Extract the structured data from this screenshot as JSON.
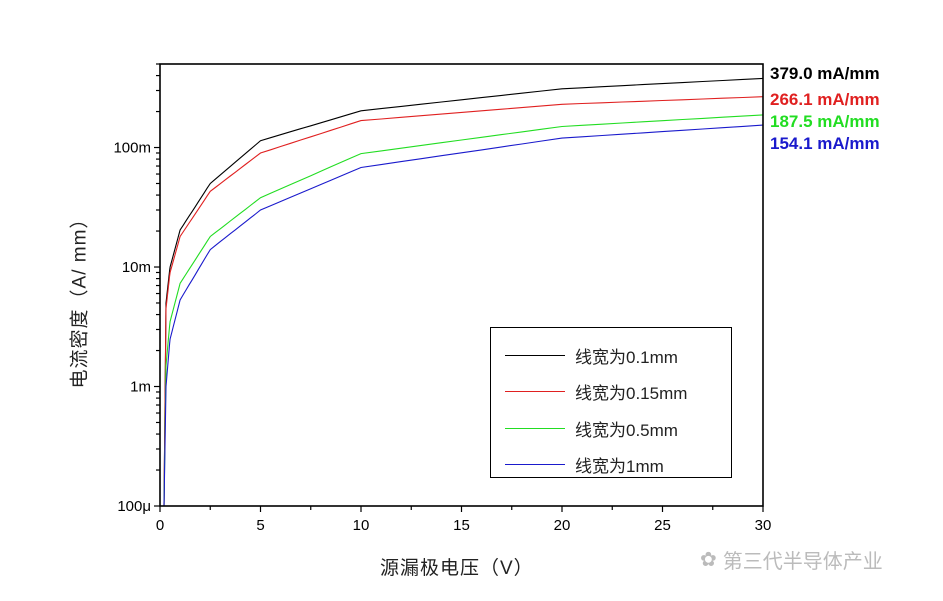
{
  "chart_data": {
    "type": "line",
    "xlabel": "源漏极电压（V）",
    "ylabel": "电流密度（A/ mm）",
    "xlim": [
      0,
      30
    ],
    "ylim": [
      0.0001,
      0.5
    ],
    "yscale": "log",
    "xticks": [
      "0",
      "5",
      "10",
      "15",
      "20",
      "25",
      "30"
    ],
    "yticks": [
      {
        "v": 0.0001,
        "label": "100μ"
      },
      {
        "v": 0.001,
        "label": "1m"
      },
      {
        "v": 0.01,
        "label": "10m"
      },
      {
        "v": 0.1,
        "label": "100m"
      }
    ],
    "grid": false,
    "legend_position": "bottom-right",
    "series": [
      {
        "name": "线宽为0.1mm",
        "color": "#000000",
        "x": [
          0.2,
          0.3,
          0.5,
          1,
          2.5,
          5,
          10,
          20,
          30
        ],
        "y": [
          0.0001,
          0.005,
          0.01,
          0.0204,
          0.05,
          0.114,
          0.203,
          0.31,
          0.379
        ]
      },
      {
        "name": "线宽为0.15mm",
        "color": "#e02020",
        "x": [
          0.2,
          0.3,
          0.5,
          1,
          2.5,
          5,
          10,
          20,
          30
        ],
        "y": [
          0.0001,
          0.0045,
          0.009,
          0.018,
          0.043,
          0.09,
          0.168,
          0.23,
          0.2661
        ]
      },
      {
        "name": "线宽为0.5mm",
        "color": "#22dd22",
        "x": [
          0.2,
          0.3,
          0.5,
          1,
          2.5,
          5,
          10,
          20,
          30
        ],
        "y": [
          0.0001,
          0.0015,
          0.0035,
          0.0073,
          0.018,
          0.038,
          0.089,
          0.15,
          0.1875
        ]
      },
      {
        "name": "线宽为1mm",
        "color": "#1a1acc",
        "x": [
          0.2,
          0.3,
          0.5,
          1,
          2.5,
          5,
          10,
          20,
          30
        ],
        "y": [
          0.0001,
          0.001,
          0.0025,
          0.0053,
          0.014,
          0.03,
          0.068,
          0.12,
          0.1541
        ]
      }
    ],
    "annotations": [
      {
        "text": "379.0 mA/mm",
        "color": "#000000"
      },
      {
        "text": "266.1 mA/mm",
        "color": "#e02020"
      },
      {
        "text": "187.5 mA/mm",
        "color": "#22dd22"
      },
      {
        "text": "154.1 mA/mm",
        "color": "#1a1acc"
      }
    ]
  },
  "watermark": {
    "text": "第三代半导体产业",
    "icon": "wechat-icon"
  }
}
